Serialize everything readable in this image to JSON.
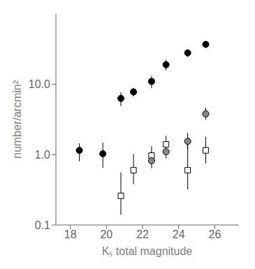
{
  "chart_data": {
    "type": "scatter",
    "log": "y",
    "xlabel": "Kₛ total magnitude",
    "ylabel": "number/arcmin²",
    "xlim": [
      17.2,
      27.3
    ],
    "xticks": [
      18,
      20,
      22,
      24,
      26
    ],
    "ylim": [
      0.1,
      100
    ],
    "yticks": [
      0.1,
      {
        "value": 1,
        "label": "1.0"
      },
      {
        "value": 10,
        "label": "10.0"
      }
    ],
    "grid": false,
    "series": [
      {
        "marker": "circle",
        "color": "#000000",
        "x": [
          18.5,
          19.8,
          20.8,
          21.5,
          22.5,
          23.3,
          24.5,
          25.5
        ],
        "values": [
          1.15,
          1.03,
          6.3,
          7.8,
          11.0,
          19.0,
          28.0,
          37.0
        ],
        "yerr_lo": [
          0.35,
          0.38,
          1.4,
          1.1,
          2.2,
          3.2,
          3.5,
          4.0
        ],
        "yerr_hi": [
          0.3,
          0.45,
          1.4,
          1.1,
          2.2,
          3.2,
          3.5,
          4.0
        ]
      },
      {
        "marker": "square",
        "color": "#ffffff",
        "x": [
          20.8,
          21.5,
          22.5,
          23.3,
          24.5,
          25.5
        ],
        "values": [
          0.26,
          0.6,
          0.97,
          1.4,
          0.6,
          1.15
        ],
        "yerr_lo": [
          0.12,
          0.22,
          0.2,
          0.38,
          0.28,
          0.4
        ],
        "yerr_hi": [
          0.3,
          0.42,
          0.35,
          0.45,
          0.9,
          0.65
        ]
      },
      {
        "marker": "circle",
        "color": "#888888",
        "x": [
          22.5,
          23.3,
          24.5,
          25.5
        ],
        "values": [
          0.82,
          1.1,
          1.55,
          3.8
        ],
        "yerr_lo": [
          0.18,
          0.22,
          0.38,
          0.65
        ],
        "yerr_hi": [
          0.28,
          0.3,
          0.48,
          0.85
        ]
      }
    ]
  }
}
